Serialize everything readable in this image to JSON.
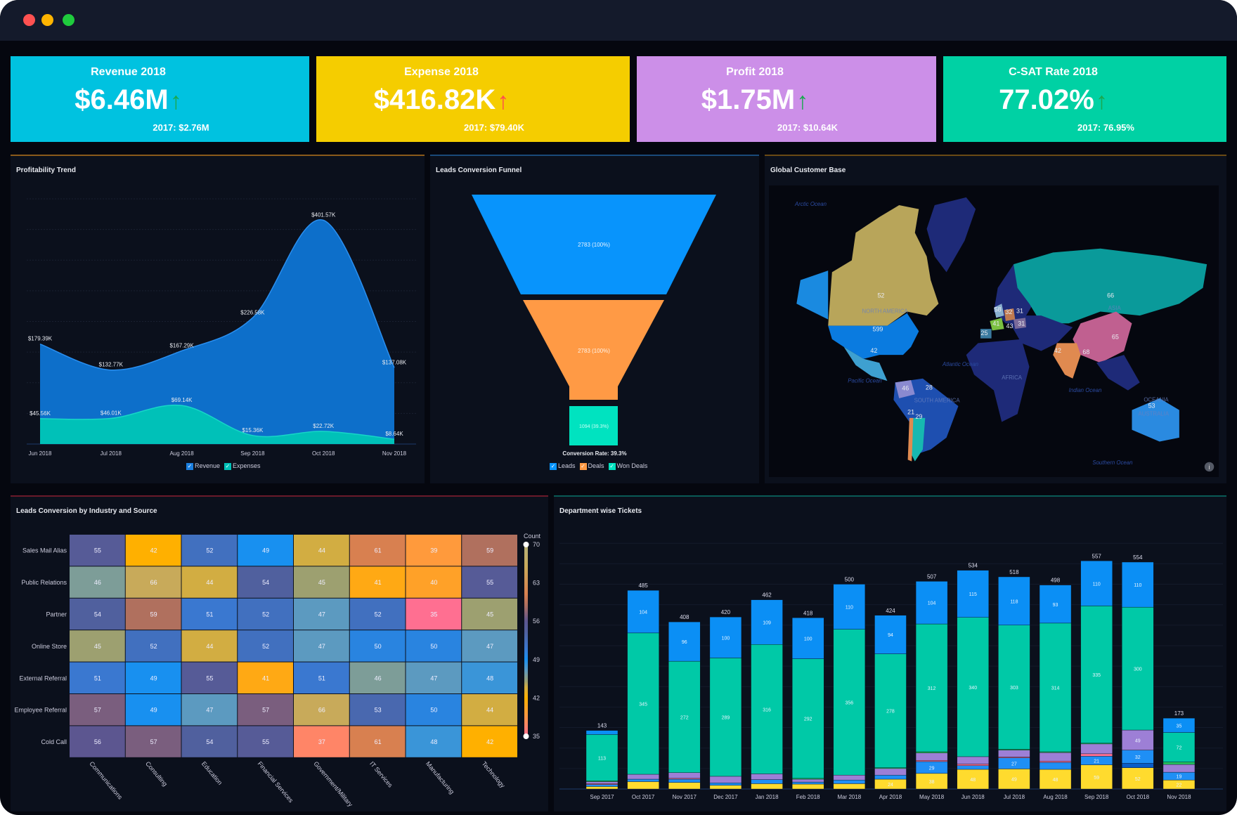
{
  "window": {
    "controls": [
      "close",
      "minimize",
      "maximize"
    ]
  },
  "kpis": [
    {
      "title": "Revenue 2018",
      "value": "$6.46M",
      "trend": "up",
      "trend_color": "#1aa84f",
      "previous": "2017: $2.76M",
      "color": "#00c2e0"
    },
    {
      "title": "Expense 2018",
      "value": "$416.82K",
      "trend": "up",
      "trend_color": "#ff4d4d",
      "previous": "2017: $79.40K",
      "color": "#f5cd00"
    },
    {
      "title": "Profit 2018",
      "value": "$1.75M",
      "trend": "up",
      "trend_color": "#1aa84f",
      "previous": "2017: $10.64K",
      "color": "#cc8fe8"
    },
    {
      "title": "C-SAT Rate 2018",
      "value": "77.02%",
      "trend": "up",
      "trend_color": "#1aa84f",
      "previous": "2017: 76.95%",
      "color": "#00d1a4"
    }
  ],
  "profit": {
    "title": "Profitability Trend",
    "legend": [
      "Revenue",
      "Expenses"
    ]
  },
  "funnel": {
    "title": "Leads Conversion Funnel",
    "stages": [
      {
        "name": "Leads",
        "label": "2783 (100%)",
        "value": 2783,
        "color": "#0894fc"
      },
      {
        "name": "Deals",
        "label": "2783 (100%)",
        "value": 2783,
        "color": "#ff9a45"
      },
      {
        "name": "Won Deals",
        "label": "1094 (39.3%)",
        "value": 1094,
        "color": "#00e3c0"
      }
    ],
    "conversion": "Conversion Rate: 39.3%"
  },
  "map": {
    "title": "Global Customer Base",
    "oceans": [
      "Arctic Ocean",
      "Pacific Ocean",
      "Atlantic Ocean",
      "Indian Ocean",
      "Southern Ocean"
    ],
    "continents": [
      "NORTH AMERICA",
      "SOUTH AMERICA",
      "AFRICA",
      "ASIA",
      "OCEANIA",
      "AUSTRALIA"
    ],
    "values": [
      "52",
      "599",
      "42",
      "46",
      "28",
      "21",
      "29",
      "66",
      "65",
      "68",
      "42",
      "53",
      "58",
      "32",
      "31",
      "41",
      "31",
      "43",
      "25"
    ]
  },
  "heatmap": {
    "title": "Leads Conversion by Industry and Source",
    "legend_title": "Count",
    "legend_ticks": [
      "70",
      "63",
      "56",
      "49",
      "42",
      "35"
    ]
  },
  "tickets": {
    "title": "Department wise Tickets"
  },
  "chart_data": [
    {
      "type": "area",
      "title": "Profitability Trend",
      "categories": [
        "Jun 2018",
        "Jul 2018",
        "Aug 2018",
        "Sep 2018",
        "Oct 2018",
        "Nov 2018"
      ],
      "ylim": [
        0,
        440
      ],
      "series": [
        {
          "name": "Revenue",
          "color": "#0d6fca",
          "values": [
            179.39,
            132.77,
            167.29,
            226.58,
            401.57,
            137.08
          ],
          "labels": [
            "$179.39K",
            "$132.77K",
            "$167.29K",
            "$226.58K",
            "$401.57K",
            "$137.08K"
          ]
        },
        {
          "name": "Expenses",
          "color": "#00c1b8",
          "values": [
            45.56,
            46.01,
            69.14,
            15.36,
            22.72,
            8.64
          ],
          "labels": [
            "$45.56K",
            "$46.01K",
            "$69.14K",
            "$15.36K",
            "$22.72K",
            "$8.64K"
          ]
        }
      ]
    },
    {
      "type": "heatmap",
      "title": "Leads Conversion by Industry and Source",
      "rows": [
        "Sales Mail Alias",
        "Public Relations",
        "Partner",
        "Online Store",
        "External Referral",
        "Employee Referral",
        "Cold Call"
      ],
      "columns": [
        "Communications",
        "Consulting",
        "Education",
        "Financial Services",
        "Government/Military",
        "IT Services",
        "Manufacturing",
        "Technology"
      ],
      "values": [
        [
          55,
          42,
          52,
          49,
          44,
          61,
          39,
          59
        ],
        [
          46,
          66,
          44,
          54,
          45,
          41,
          40,
          55
        ],
        [
          54,
          59,
          51,
          52,
          47,
          52,
          35,
          45
        ],
        [
          45,
          52,
          44,
          52,
          47,
          50,
          50,
          47
        ],
        [
          51,
          49,
          55,
          41,
          51,
          46,
          47,
          48
        ],
        [
          57,
          49,
          47,
          57,
          66,
          53,
          50,
          44
        ],
        [
          56,
          57,
          54,
          55,
          37,
          61,
          48,
          42
        ]
      ],
      "range": [
        35,
        70
      ]
    },
    {
      "type": "bar",
      "stacked": true,
      "title": "Department wise Tickets",
      "categories": [
        "Sep 2017",
        "Oct 2017",
        "Nov 2017",
        "Dec 2017",
        "Jan 2018",
        "Feb 2018",
        "Mar 2018",
        "Apr 2018",
        "May 2018",
        "Jun 2018",
        "Jul 2018",
        "Aug 2018",
        "Sep 2018",
        "Oct 2018",
        "Nov 2018"
      ],
      "totals": [
        143,
        485,
        408,
        420,
        462,
        418,
        500,
        424,
        507,
        534,
        518,
        498,
        557,
        554,
        173
      ],
      "series": [
        {
          "color": "#ffdb2e",
          "values": [
            6,
            18,
            16,
            9,
            13,
            12,
            13,
            24,
            38,
            48,
            49,
            48,
            59,
            52,
            22
          ],
          "labeled_from": 7
        },
        {
          "color": "#0a5cc7",
          "values": [
            0,
            0,
            0,
            0,
            0,
            0,
            0,
            0,
            0,
            0,
            0,
            0,
            0,
            11,
            0
          ]
        },
        {
          "color": "#1f8ff5",
          "values": [
            5,
            6,
            8,
            6,
            10,
            5,
            9,
            10,
            29,
            9,
            27,
            17,
            21,
            32,
            19
          ],
          "labeled": [
            8,
            10,
            12,
            13,
            14
          ]
        },
        {
          "color": "#ff6f91",
          "values": [
            2,
            0,
            2,
            0,
            0,
            0,
            0,
            0,
            3,
            4,
            2,
            3,
            6,
            0,
            0
          ]
        },
        {
          "color": "#9d7fd6",
          "values": [
            5,
            12,
            14,
            16,
            14,
            7,
            12,
            16,
            18,
            18,
            17,
            21,
            24,
            49,
            19
          ],
          "labeled": [
            13
          ]
        },
        {
          "color": "#22c55e",
          "values": [
            2,
            0,
            0,
            0,
            0,
            2,
            0,
            2,
            3,
            0,
            2,
            2,
            2,
            0,
            6
          ]
        },
        {
          "color": "#00c9a7",
          "values": [
            113,
            345,
            272,
            289,
            316,
            292,
            356,
            278,
            312,
            340,
            303,
            314,
            335,
            300,
            72
          ],
          "labeled_all": true
        },
        {
          "color": "#0b8ff5",
          "values": [
            10,
            104,
            96,
            100,
            109,
            100,
            110,
            94,
            104,
            115,
            118,
            93,
            110,
            110,
            35
          ],
          "labeled_from": 1
        }
      ],
      "ylim": [
        0,
        600
      ]
    }
  ]
}
